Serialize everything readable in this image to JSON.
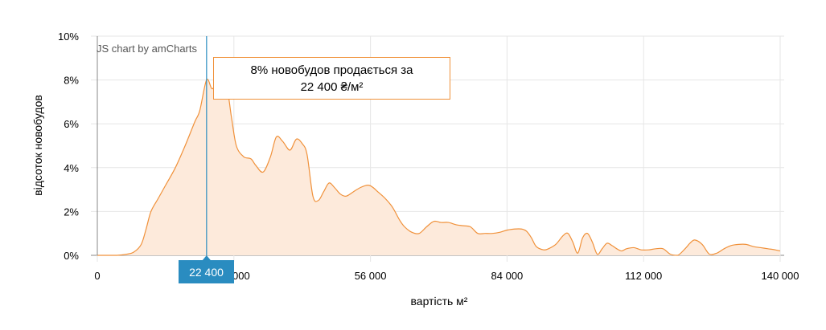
{
  "colors": {
    "series_stroke": "#f0913a",
    "series_fill": "#fdeadb",
    "cursor": "#2a8cc0",
    "grid": "#e6e6e6",
    "axis": "#888888"
  },
  "credit": "JS chart by amCharts",
  "tooltip": {
    "line1": "8% новобудов продається за",
    "line2": "22 400 ₴/м²"
  },
  "cursor": {
    "x": 22400,
    "label": "22 400"
  },
  "chart_data": {
    "type": "area",
    "title": "",
    "xlabel": "вартість м²",
    "ylabel": "відсоток новобудов",
    "xlim": [
      0,
      140000
    ],
    "ylim": [
      0,
      10
    ],
    "x_ticks": [
      0,
      28000,
      56000,
      84000,
      112000,
      140000
    ],
    "x_tick_labels": [
      "0",
      "28 000",
      "56 000",
      "84 000",
      "112 000",
      "140 000"
    ],
    "y_ticks": [
      0,
      2,
      4,
      6,
      8,
      10
    ],
    "y_tick_labels": [
      "0%",
      "2%",
      "4%",
      "6%",
      "8%",
      "10%"
    ],
    "grid": true,
    "legend": "none",
    "series": [
      {
        "x": [
          0,
          4000,
          6000,
          7500,
          9000,
          10000,
          11000,
          12500,
          14000,
          16000,
          18000,
          20000,
          21000,
          22400,
          23500,
          24500,
          26500,
          27500,
          28500,
          30000,
          31500,
          32500,
          34000,
          35500,
          36700,
          38000,
          39500,
          40800,
          42000,
          43000,
          44200,
          45300,
          46400,
          47500,
          48600,
          49800,
          51000,
          52500,
          54000,
          55500,
          56500,
          57500,
          59000,
          60500,
          62000,
          63000,
          64500,
          66000,
          67500,
          69000,
          70500,
          72000,
          73500,
          75000,
          76500,
          78000,
          79500,
          81000,
          82500,
          84000,
          85500,
          87000,
          88000,
          89000,
          90000,
          91500,
          92500,
          94000,
          95500,
          96500,
          97500,
          98500,
          99500,
          100500,
          101500,
          102500,
          103500,
          104500,
          105500,
          106500,
          107500,
          108500,
          110000,
          111500,
          113000,
          114500,
          116000,
          117500,
          119000,
          120500,
          121500,
          122500,
          124000,
          125500,
          127000,
          128500,
          130000,
          131500,
          133000,
          134500,
          136000,
          137500,
          139000,
          140000
        ],
        "y": [
          0,
          0,
          0.05,
          0.15,
          0.5,
          1.2,
          2.0,
          2.6,
          3.2,
          4.0,
          5.0,
          6.1,
          6.6,
          8.0,
          7.6,
          7.8,
          7.6,
          6.3,
          5.0,
          4.5,
          4.4,
          4.1,
          3.8,
          4.5,
          5.4,
          5.2,
          4.8,
          5.3,
          5.1,
          4.6,
          2.7,
          2.5,
          2.9,
          3.3,
          3.1,
          2.8,
          2.7,
          2.9,
          3.1,
          3.2,
          3.1,
          2.9,
          2.6,
          2.2,
          1.6,
          1.3,
          1.05,
          1.0,
          1.3,
          1.55,
          1.5,
          1.5,
          1.4,
          1.35,
          1.3,
          1.0,
          1.0,
          1.0,
          1.05,
          1.15,
          1.2,
          1.2,
          1.1,
          0.8,
          0.4,
          0.25,
          0.3,
          0.5,
          0.9,
          1.0,
          0.6,
          0.1,
          0.8,
          1.0,
          0.6,
          0.05,
          0.3,
          0.55,
          0.45,
          0.3,
          0.2,
          0.3,
          0.35,
          0.25,
          0.25,
          0.3,
          0.3,
          0.05,
          0.0,
          0.3,
          0.55,
          0.7,
          0.5,
          0.05,
          0.1,
          0.3,
          0.45,
          0.5,
          0.5,
          0.4,
          0.35,
          0.3,
          0.25,
          0.2
        ]
      }
    ]
  }
}
